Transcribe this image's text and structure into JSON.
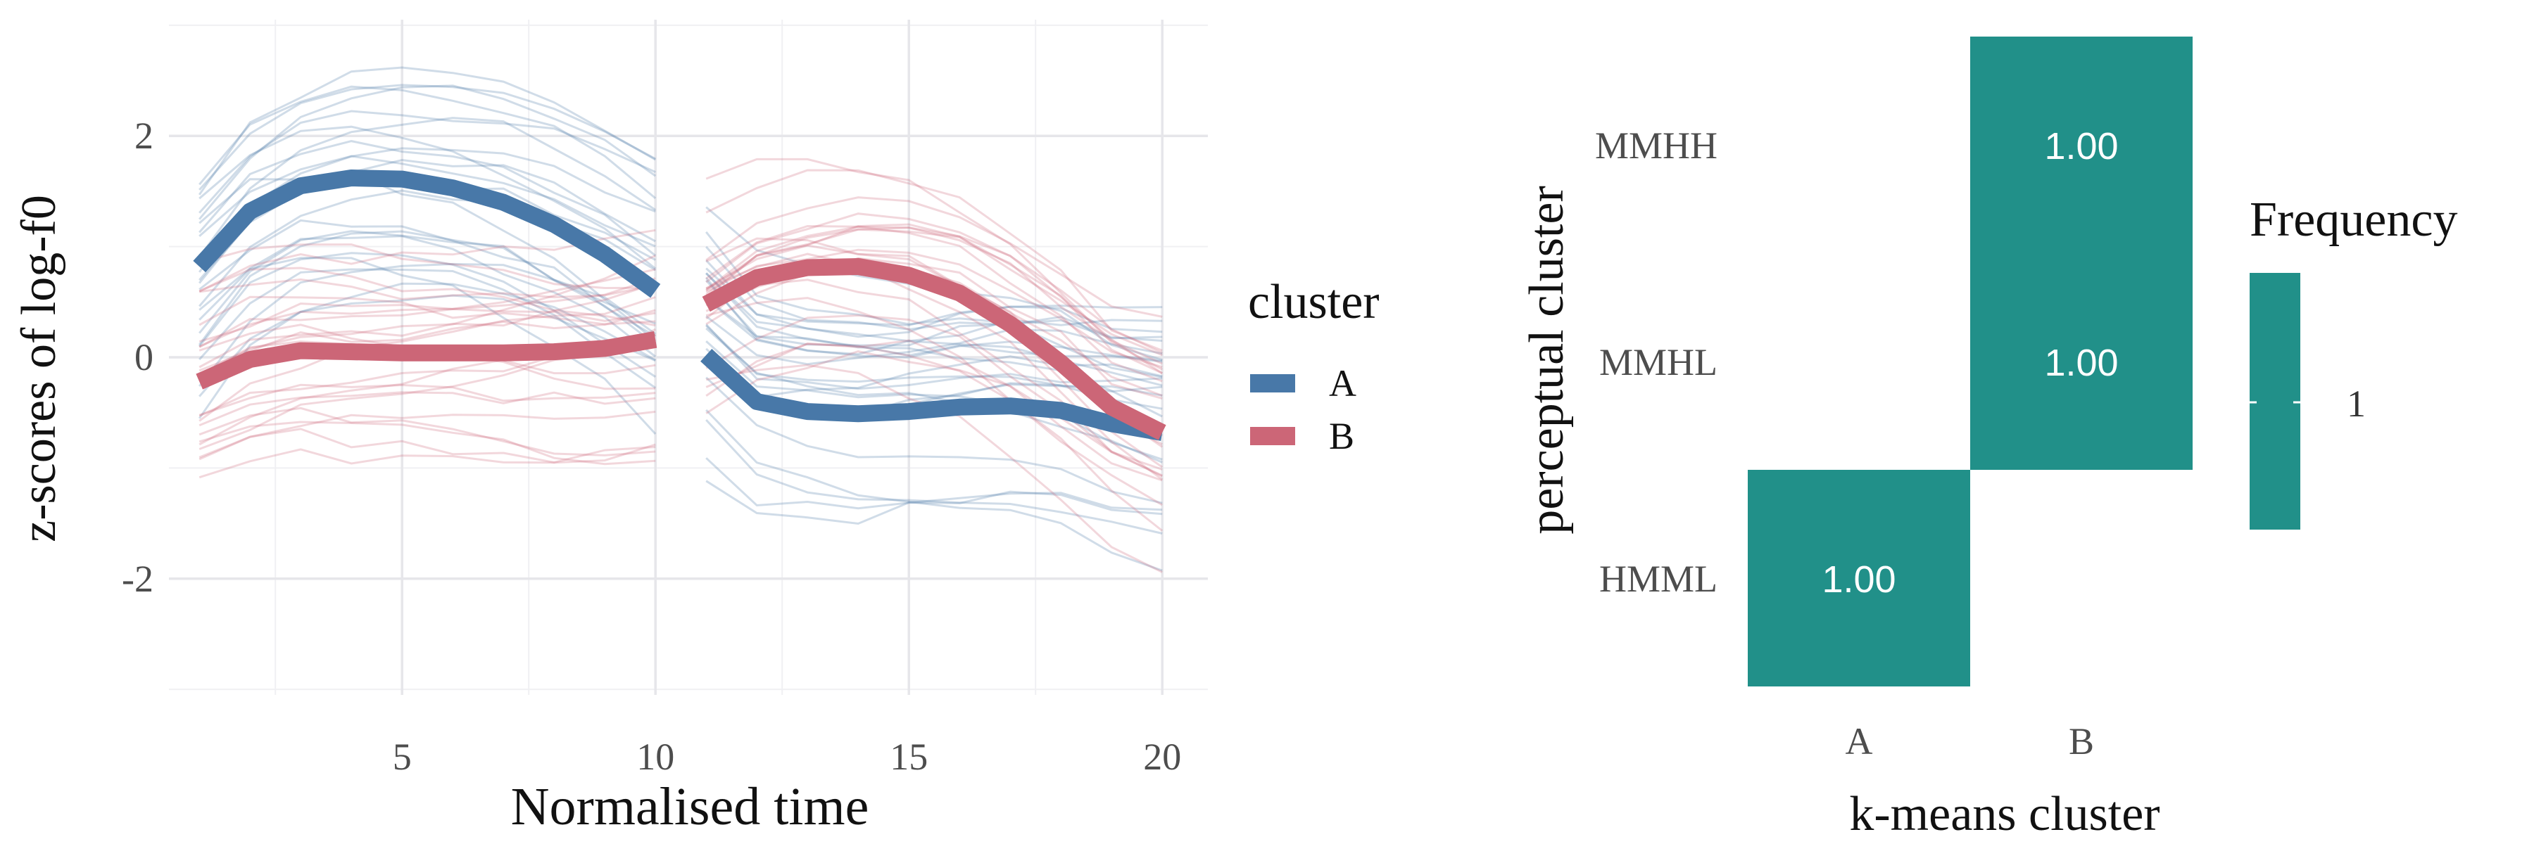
{
  "colors": {
    "A": "#4878a8",
    "B": "#cc6677",
    "heat": "#219089",
    "grid": "#e6e6ea",
    "text": "#333333",
    "tick_text": "#4d4d4d"
  },
  "chart_data": [
    {
      "type": "line",
      "xlabel": "Normalised time",
      "ylabel": "z-scores of log-f0",
      "xlim": [
        0.4,
        20.9
      ],
      "ylim": [
        -3.05,
        3.05
      ],
      "x_ticks": [
        5,
        10,
        15,
        20
      ],
      "y_ticks": [
        -2,
        0,
        2
      ],
      "x_minor_ticks": [
        2.5,
        7.5,
        12.5,
        17.5
      ],
      "y_minor_ticks": [
        -3,
        -1,
        1,
        3
      ],
      "grid": true,
      "legend": {
        "title": "cluster",
        "position": "right",
        "entries": [
          {
            "label": "A",
            "color": "#4878a8"
          },
          {
            "label": "B",
            "color": "#cc6677"
          }
        ]
      },
      "series": [
        {
          "name": "A",
          "color": "#4878a8",
          "segments": [
            {
              "x": [
                1,
                2,
                3,
                4,
                5,
                6,
                7,
                8,
                9,
                10
              ],
              "y": [
                0.82,
                1.32,
                1.55,
                1.62,
                1.61,
                1.53,
                1.4,
                1.2,
                0.93,
                0.6
              ]
            },
            {
              "x": [
                11,
                12,
                13,
                14,
                15,
                16,
                17,
                18,
                19,
                20
              ],
              "y": [
                0.02,
                -0.4,
                -0.49,
                -0.51,
                -0.49,
                -0.45,
                -0.44,
                -0.48,
                -0.6,
                -0.68
              ]
            }
          ]
        },
        {
          "name": "B",
          "color": "#cc6677",
          "segments": [
            {
              "x": [
                1,
                2,
                3,
                4,
                5,
                6,
                7,
                8,
                9,
                10
              ],
              "y": [
                -0.22,
                -0.02,
                0.06,
                0.05,
                0.04,
                0.04,
                0.04,
                0.05,
                0.08,
                0.16
              ]
            },
            {
              "x": [
                11,
                12,
                13,
                14,
                15,
                16,
                17,
                18,
                19,
                20
              ],
              "y": [
                0.48,
                0.72,
                0.81,
                0.82,
                0.74,
                0.58,
                0.3,
                -0.05,
                -0.45,
                -0.68
              ]
            }
          ]
        }
      ]
    },
    {
      "type": "heatmap",
      "xlabel": "k-means cluster",
      "ylabel": "perceptual cluster",
      "x_categories": [
        "A",
        "B"
      ],
      "y_categories": [
        "HMML",
        "MMHL",
        "MMHH"
      ],
      "cells": [
        {
          "x": "A",
          "y": "HMML",
          "value": 1.0,
          "label": "1.00"
        },
        {
          "x": "B",
          "y": "MMHL",
          "value": 1.0,
          "label": "1.00"
        },
        {
          "x": "B",
          "y": "MMHH",
          "value": 1.0,
          "label": "1.00"
        }
      ],
      "legend": {
        "title": "Frequency",
        "tick_label": "1",
        "color": "#219089"
      }
    }
  ]
}
